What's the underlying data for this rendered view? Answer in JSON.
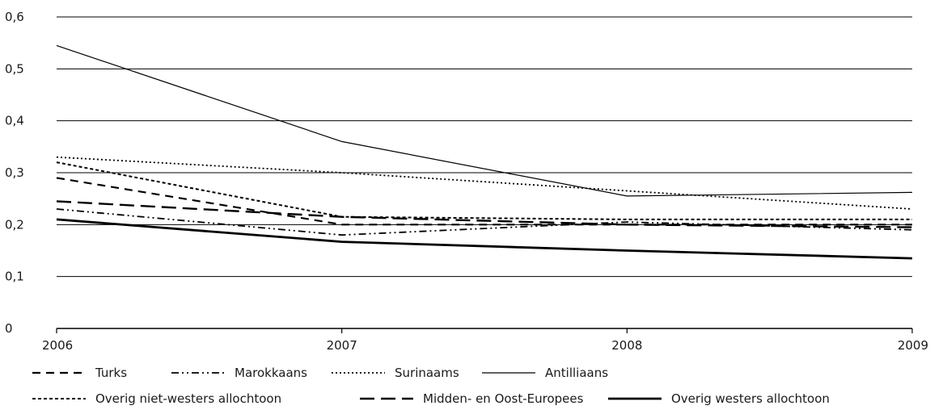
{
  "chart_data": {
    "type": "line",
    "x": [
      2006,
      2007,
      2008,
      2009
    ],
    "xticks": [
      "2006",
      "2007",
      "2008",
      "2009"
    ],
    "ylim": [
      0,
      0.6
    ],
    "yticks": [
      "0",
      "0,1",
      "0,2",
      "0,3",
      "0,4",
      "0,5",
      "0,6"
    ],
    "grid": "horizontal",
    "legend_position": "bottom",
    "series": [
      {
        "name": "Turks",
        "values": [
          0.29,
          0.2,
          0.2,
          0.2
        ],
        "dash": "10,7",
        "width": 2.2,
        "color": "#000000"
      },
      {
        "name": "Marokkaans",
        "values": [
          0.23,
          0.18,
          0.205,
          0.19
        ],
        "dash": "9,4,2,4,2,4",
        "width": 1.8,
        "color": "#000000"
      },
      {
        "name": "Surinaams",
        "values": [
          0.33,
          0.3,
          0.265,
          0.23
        ],
        "dash": "2,3",
        "width": 1.8,
        "color": "#000000"
      },
      {
        "name": "Antilliaans",
        "values": [
          0.545,
          0.36,
          0.255,
          0.262
        ],
        "dash": "",
        "width": 1.2,
        "color": "#000000"
      },
      {
        "name": "Overig niet-westers allochtoon",
        "values": [
          0.32,
          0.215,
          0.21,
          0.21
        ],
        "dash": "4,3",
        "width": 2.0,
        "color": "#000000"
      },
      {
        "name": "Midden- en Oost-Europees",
        "values": [
          0.245,
          0.215,
          0.2,
          0.195
        ],
        "dash": "18,8",
        "width": 2.4,
        "color": "#000000"
      },
      {
        "name": "Overig westers allochtoon",
        "values": [
          0.21,
          0.167,
          0.15,
          0.135
        ],
        "dash": "",
        "width": 2.8,
        "color": "#000000"
      }
    ],
    "legend_rows": [
      [
        0,
        1,
        2,
        3
      ],
      [
        4,
        5,
        6
      ]
    ]
  }
}
